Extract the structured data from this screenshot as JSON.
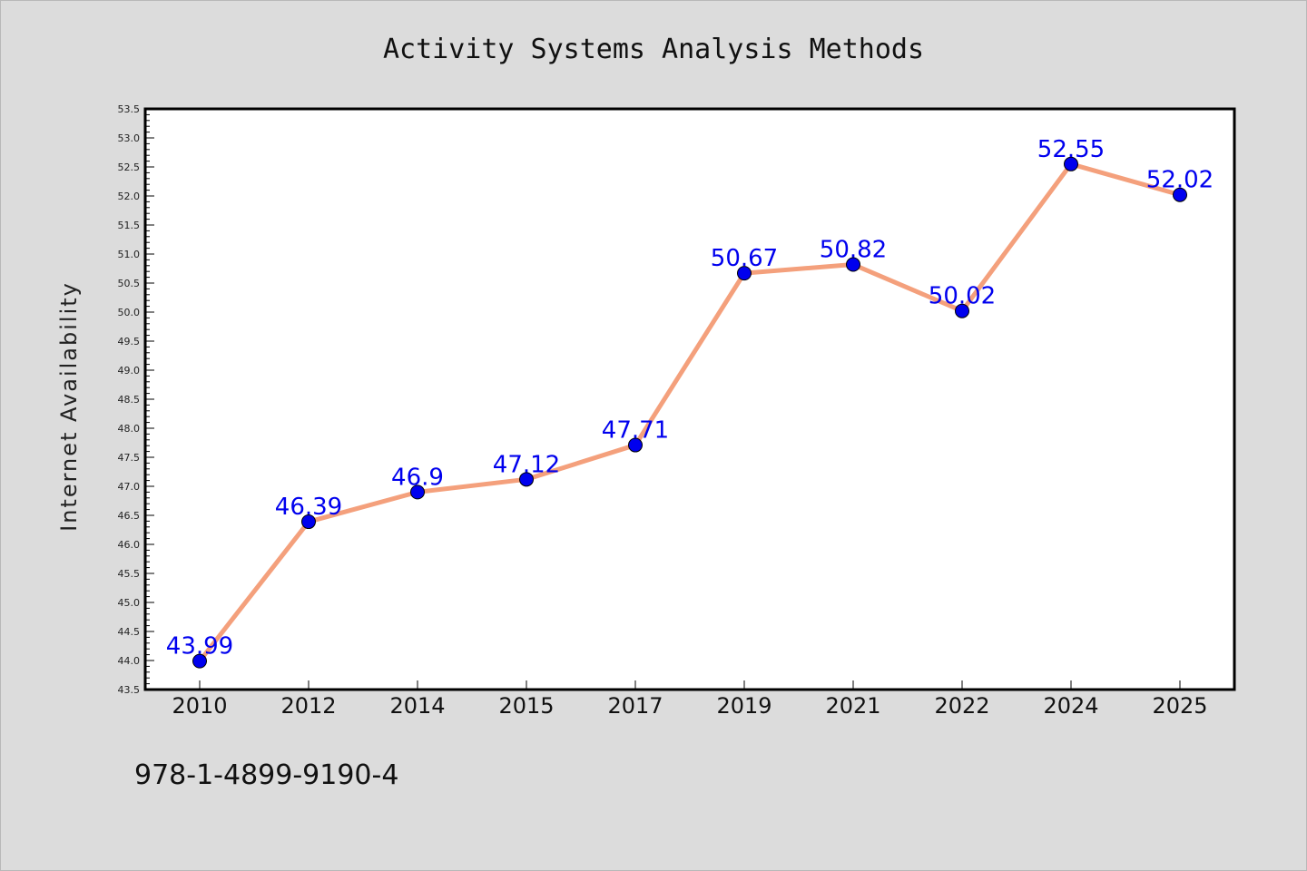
{
  "chart_data": {
    "type": "line",
    "title": "Activity Systems Analysis Methods",
    "xlabel": "",
    "ylabel": "Internet Availability",
    "categories": [
      "2010",
      "2012",
      "2014",
      "2015",
      "2017",
      "2019",
      "2021",
      "2022",
      "2024",
      "2025"
    ],
    "series": [
      {
        "values": [
          43.99,
          46.39,
          46.9,
          47.12,
          47.71,
          50.67,
          50.82,
          50.02,
          52.55,
          52.02
        ],
        "labels": [
          "43.99",
          "46.39",
          "46.9",
          "47.12",
          "47.71",
          "50.67",
          "50.82",
          "50.02",
          "52.55",
          "52.02"
        ],
        "line_color": "#f4a07c",
        "marker_color": "#0000ee"
      }
    ],
    "ylim": [
      43.5,
      53.5
    ],
    "ytick_step": 0.5,
    "grid": false,
    "legend": "none",
    "label_color": "#0000ee"
  },
  "footer": {
    "isbn": "978-1-4899-9190-4"
  }
}
